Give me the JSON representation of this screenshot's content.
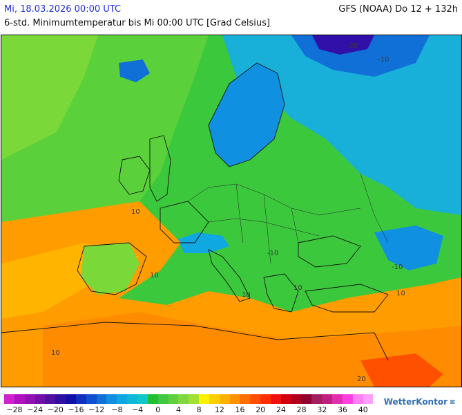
{
  "header": {
    "date": "Mi, 18.03.2026 00:00 UTC",
    "model": "GFS (NOAA) Do 12 + 132h",
    "description": "6-std. Minimumtemperatur bis Mi 00:00 UTC [Grad Celsius]"
  },
  "legend": {
    "colors": [
      "#d020d0",
      "#b010c0",
      "#9010b0",
      "#7010a8",
      "#5010a0",
      "#3010a0",
      "#1010a8",
      "#1030c0",
      "#1050d0",
      "#1070d8",
      "#1090e0",
      "#10a8e0",
      "#10b8d8",
      "#10c8c8",
      "#20c030",
      "#40c840",
      "#60d040",
      "#80d840",
      "#a0e030",
      "#fff000",
      "#ffd000",
      "#ffb000",
      "#ff9000",
      "#ff7000",
      "#ff5000",
      "#ff3000",
      "#f01010",
      "#d00010",
      "#b00020",
      "#900030",
      "#a02060",
      "#c02080",
      "#e030b0",
      "#ff40e0",
      "#ff80f0",
      "#ffa0ff"
    ],
    "ticks": [
      "−28",
      "−24",
      "−20",
      "−16",
      "−12",
      "−8",
      "−4",
      "0",
      "4",
      "8",
      "12",
      "16",
      "20",
      "24",
      "28",
      "32",
      "36",
      "40"
    ]
  },
  "map": {
    "contour_labels": [
      "-20",
      "-10",
      "10",
      "-10",
      "10",
      "10",
      "10",
      "-10",
      "10",
      "20",
      "10"
    ]
  },
  "brand": {
    "name": "WetterKontor"
  }
}
